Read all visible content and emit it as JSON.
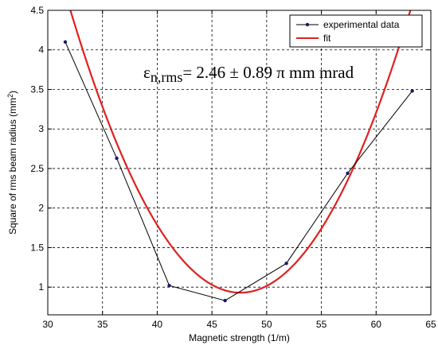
{
  "chart_data": {
    "type": "line",
    "xlabel": "Magnetic strength (1/m)",
    "ylabel": "Square of rms beam radius (mm²)",
    "xlim": [
      30,
      65
    ],
    "ylim": [
      0.65,
      4.5
    ],
    "x_ticks": [
      30,
      35,
      40,
      45,
      50,
      55,
      60,
      65
    ],
    "y_ticks": [
      1,
      1.5,
      2,
      2.5,
      3,
      3.5,
      4,
      4.5
    ],
    "grid": true,
    "legend_position": "top-right",
    "series": [
      {
        "name": "experimental data",
        "style": "line-with-markers",
        "color": "#000000",
        "marker_color": "#1a1a66",
        "x": [
          31.6,
          36.3,
          41.1,
          46.2,
          51.8,
          57.4,
          63.3
        ],
        "y": [
          4.1,
          2.63,
          1.02,
          0.83,
          1.3,
          2.44,
          3.48
        ]
      },
      {
        "name": "fit",
        "style": "line",
        "color": "#e02020",
        "fit_quadratic": {
          "a": 0.0148,
          "h": 47.6,
          "k": 0.93
        }
      }
    ],
    "annotation": {
      "symbol": "ε",
      "subscript": "n,rms",
      "text": "= 2.46 ± 0.89 π mm mrad"
    }
  }
}
